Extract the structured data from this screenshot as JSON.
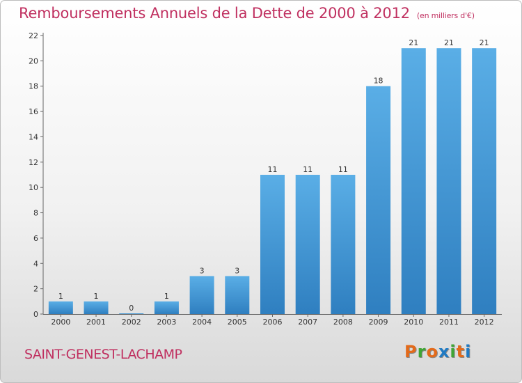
{
  "header": {
    "title": "Remboursements Annuels de la Dette de 2000 à 2012",
    "unit": "(en milliers d'€)"
  },
  "footer": {
    "place": "SAINT-GENEST-LACHAMP",
    "logo": "Proxiti",
    "logo_colors": [
      "#e36a1a",
      "#3fa535",
      "#e36a1a",
      "#1f7ac3",
      "#3fa535",
      "#e36a1a",
      "#1f7ac3"
    ]
  },
  "chart_data": {
    "type": "bar",
    "title": "Remboursements Annuels de la Dette de 2000 à 2012",
    "categories": [
      "2000",
      "2001",
      "2002",
      "2003",
      "2004",
      "2005",
      "2006",
      "2007",
      "2008",
      "2009",
      "2010",
      "2011",
      "2012"
    ],
    "values": [
      1,
      1,
      0,
      1,
      3,
      3,
      11,
      11,
      11,
      18,
      21,
      21,
      21
    ],
    "xlabel": "",
    "ylabel": "",
    "ylim": [
      0,
      22
    ],
    "yticks": [
      0,
      2,
      4,
      6,
      8,
      10,
      12,
      14,
      16,
      18,
      20,
      22
    ],
    "grid": false,
    "bar_color_light": "#5aaee6",
    "bar_color_dark": "#2f7fc0"
  }
}
